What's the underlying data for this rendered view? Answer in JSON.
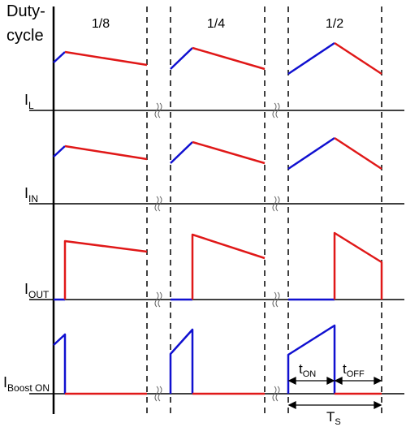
{
  "header": {
    "line1": "Duty-",
    "line2": "cycle"
  },
  "duty_cycles": [
    "1/8",
    "1/4",
    "1/2"
  ],
  "signals": [
    {
      "main": "I",
      "sub": "L"
    },
    {
      "main": "I",
      "sub": "IN"
    },
    {
      "main": "I",
      "sub": "OUT"
    },
    {
      "main": "I",
      "sub": "Boost ON"
    }
  ],
  "annotations": {
    "t_on": {
      "main": "t",
      "sub": "ON"
    },
    "t_off": {
      "main": "t",
      "sub": "OFF"
    },
    "t_s": {
      "main": "T",
      "sub": "S"
    }
  },
  "colors": {
    "on_phase": "#1010d0",
    "off_phase": "#e01818",
    "axis": "#000000"
  }
}
